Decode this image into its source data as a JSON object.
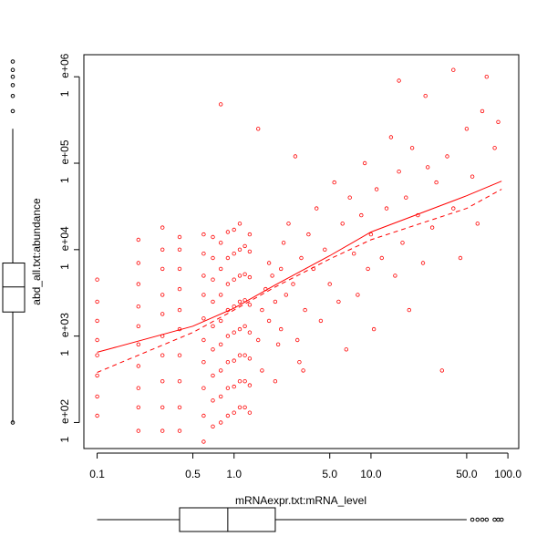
{
  "chart_data": {
    "type": "scatter",
    "title": "",
    "xlabel": "mRNAexpr.txt:mRNA_level",
    "ylabel": "abd_all.txt:abundance",
    "xscale": "log",
    "yscale": "log",
    "xlim": [
      0.08,
      120
    ],
    "ylim": [
      50,
      1800000
    ],
    "grid": false,
    "point_color": "#ff0000",
    "x_ticks": [
      {
        "value": 0.1,
        "label": "0.1"
      },
      {
        "value": 0.5,
        "label": "0.5"
      },
      {
        "value": 1.0,
        "label": "1.0"
      },
      {
        "value": 5.0,
        "label": "5.0"
      },
      {
        "value": 10.0,
        "label": "10.0"
      },
      {
        "value": 50.0,
        "label": "50.0"
      },
      {
        "value": 100.0,
        "label": "100.0"
      }
    ],
    "y_ticks": [
      {
        "value": 100,
        "label": "1 e+02"
      },
      {
        "value": 1000,
        "label": "1 e+03"
      },
      {
        "value": 10000,
        "label": "1 e+04"
      },
      {
        "value": 100000,
        "label": "1 e+05"
      },
      {
        "value": 1000000,
        "label": "1 e+06"
      }
    ],
    "x_levels": [
      0.1,
      0.2,
      0.3,
      0.4,
      0.6,
      0.7,
      0.8,
      0.9,
      1.0,
      1.1,
      1.2,
      1.3
    ],
    "points": [
      [
        0.1,
        120
      ],
      [
        0.1,
        200
      ],
      [
        0.1,
        350
      ],
      [
        0.1,
        600
      ],
      [
        0.1,
        900
      ],
      [
        0.1,
        1500
      ],
      [
        0.1,
        2500
      ],
      [
        0.1,
        4500
      ],
      [
        0.2,
        80
      ],
      [
        0.2,
        150
      ],
      [
        0.2,
        250
      ],
      [
        0.2,
        450
      ],
      [
        0.2,
        800
      ],
      [
        0.2,
        1300
      ],
      [
        0.2,
        2200
      ],
      [
        0.2,
        4000
      ],
      [
        0.2,
        7000
      ],
      [
        0.2,
        13000
      ],
      [
        0.3,
        80
      ],
      [
        0.3,
        150
      ],
      [
        0.3,
        300
      ],
      [
        0.3,
        600
      ],
      [
        0.3,
        1000
      ],
      [
        0.3,
        1800
      ],
      [
        0.3,
        3000
      ],
      [
        0.3,
        6000
      ],
      [
        0.3,
        10000
      ],
      [
        0.3,
        18000
      ],
      [
        0.4,
        80
      ],
      [
        0.4,
        150
      ],
      [
        0.4,
        300
      ],
      [
        0.4,
        600
      ],
      [
        0.4,
        1200
      ],
      [
        0.4,
        2000
      ],
      [
        0.4,
        3500
      ],
      [
        0.4,
        6000
      ],
      [
        0.4,
        10000
      ],
      [
        0.4,
        14000
      ],
      [
        0.6,
        60
      ],
      [
        0.6,
        120
      ],
      [
        0.6,
        250
      ],
      [
        0.6,
        500
      ],
      [
        0.6,
        900
      ],
      [
        0.6,
        1600
      ],
      [
        0.6,
        3000
      ],
      [
        0.6,
        5000
      ],
      [
        0.6,
        9000
      ],
      [
        0.6,
        15000
      ],
      [
        0.7,
        90
      ],
      [
        0.7,
        180
      ],
      [
        0.7,
        350
      ],
      [
        0.7,
        700
      ],
      [
        0.7,
        1300
      ],
      [
        0.7,
        2500
      ],
      [
        0.7,
        4500
      ],
      [
        0.7,
        8000
      ],
      [
        0.7,
        14000
      ],
      [
        0.8,
        100
      ],
      [
        0.8,
        200
      ],
      [
        0.8,
        400
      ],
      [
        0.8,
        800
      ],
      [
        0.8,
        1500
      ],
      [
        0.8,
        3000
      ],
      [
        0.8,
        6000
      ],
      [
        0.8,
        12000
      ],
      [
        0.8,
        480000
      ],
      [
        0.9,
        120
      ],
      [
        0.9,
        250
      ],
      [
        0.9,
        500
      ],
      [
        0.9,
        1000
      ],
      [
        0.9,
        2000
      ],
      [
        0.9,
        4000
      ],
      [
        0.9,
        8000
      ],
      [
        0.9,
        16000
      ],
      [
        1.0,
        130
      ],
      [
        1.0,
        260
      ],
      [
        1.0,
        520
      ],
      [
        1.0,
        1100
      ],
      [
        1.0,
        2200
      ],
      [
        1.0,
        4500
      ],
      [
        1.0,
        9000
      ],
      [
        1.0,
        17000
      ],
      [
        1.1,
        150
      ],
      [
        1.1,
        300
      ],
      [
        1.1,
        600
      ],
      [
        1.1,
        1200
      ],
      [
        1.1,
        2500
      ],
      [
        1.1,
        5000
      ],
      [
        1.1,
        10000
      ],
      [
        1.1,
        20000
      ],
      [
        1.2,
        150
      ],
      [
        1.2,
        300
      ],
      [
        1.2,
        600
      ],
      [
        1.2,
        1300
      ],
      [
        1.2,
        2600
      ],
      [
        1.2,
        5200
      ],
      [
        1.2,
        11000
      ],
      [
        1.3,
        130
      ],
      [
        1.3,
        270
      ],
      [
        1.3,
        550
      ],
      [
        1.3,
        1100
      ],
      [
        1.3,
        2300
      ],
      [
        1.3,
        4800
      ],
      [
        1.3,
        9500
      ],
      [
        1.3,
        15000
      ],
      [
        1.5,
        900
      ],
      [
        1.6,
        2000
      ],
      [
        1.7,
        3500
      ],
      [
        1.8,
        1500
      ],
      [
        1.9,
        5000
      ],
      [
        2.0,
        2500
      ],
      [
        2.1,
        800
      ],
      [
        2.2,
        6000
      ],
      [
        2.3,
        12000
      ],
      [
        2.4,
        3000
      ],
      [
        1.6,
        400
      ],
      [
        1.8,
        7000
      ],
      [
        2.0,
        300
      ],
      [
        2.2,
        1200
      ],
      [
        2.5,
        20000
      ],
      [
        2.7,
        4000
      ],
      [
        2.9,
        900
      ],
      [
        3.1,
        8000
      ],
      [
        3.3,
        2000
      ],
      [
        3.5,
        15000
      ],
      [
        1.5,
        250000
      ],
      [
        2.8,
        120000
      ],
      [
        3.2,
        400
      ],
      [
        3.8,
        6000
      ],
      [
        4.0,
        30000
      ],
      [
        4.3,
        1500
      ],
      [
        4.6,
        10000
      ],
      [
        5.0,
        4000
      ],
      [
        5.4,
        60000
      ],
      [
        5.8,
        2500
      ],
      [
        6.2,
        20000
      ],
      [
        6.6,
        700
      ],
      [
        7.0,
        40000
      ],
      [
        7.5,
        9000
      ],
      [
        8.0,
        3000
      ],
      [
        8.5,
        25000
      ],
      [
        9.0,
        100000
      ],
      [
        9.5,
        6000
      ],
      [
        10.0,
        15000
      ],
      [
        10.5,
        1200
      ],
      [
        11.0,
        50000
      ],
      [
        12.0,
        8000
      ],
      [
        13.0,
        30000
      ],
      [
        14.0,
        200000
      ],
      [
        15.0,
        5000
      ],
      [
        16.0,
        80000
      ],
      [
        17.0,
        12000
      ],
      [
        18.0,
        40000
      ],
      [
        19.0,
        2000
      ],
      [
        20.0,
        150000
      ],
      [
        22.0,
        25000
      ],
      [
        24.0,
        7000
      ],
      [
        26.0,
        90000
      ],
      [
        28.0,
        18000
      ],
      [
        30.0,
        60000
      ],
      [
        33.0,
        400
      ],
      [
        36.0,
        120000
      ],
      [
        40.0,
        30000
      ],
      [
        45.0,
        8000
      ],
      [
        50.0,
        250000
      ],
      [
        55.0,
        70000
      ],
      [
        60.0,
        20000
      ],
      [
        65.0,
        400000
      ],
      [
        70.0,
        1000000
      ],
      [
        80.0,
        150000
      ],
      [
        85.0,
        300000
      ],
      [
        40.0,
        1200000
      ],
      [
        25.0,
        600000
      ],
      [
        16.0,
        900000
      ],
      [
        3.0,
        500
      ]
    ],
    "fit_solid": [
      [
        0.1,
        650
      ],
      [
        0.5,
        1300
      ],
      [
        1.0,
        2100
      ],
      [
        2.0,
        3900
      ],
      [
        5.0,
        8500
      ],
      [
        10.0,
        16000
      ],
      [
        50.0,
        42000
      ],
      [
        90.0,
        62000
      ]
    ],
    "fit_dashed": [
      [
        0.1,
        380
      ],
      [
        0.5,
        1100
      ],
      [
        1.0,
        2000
      ],
      [
        2.0,
        3700
      ],
      [
        5.0,
        7800
      ],
      [
        10.0,
        13000
      ],
      [
        50.0,
        30000
      ],
      [
        90.0,
        50000
      ]
    ],
    "x_boxplot": {
      "min": 0.1,
      "q1": 0.4,
      "median": 0.9,
      "q3": 2.0,
      "upper_whisker": 50,
      "outliers": [
        55,
        60,
        65,
        70,
        80,
        85,
        90
      ]
    },
    "y_boxplot": {
      "min": 100,
      "q1": 1900,
      "median": 3700,
      "q3": 7000,
      "upper_whisker": 250000,
      "outliers": [
        400000,
        600000,
        800000,
        1000000,
        1200000,
        1500000
      ]
    }
  }
}
